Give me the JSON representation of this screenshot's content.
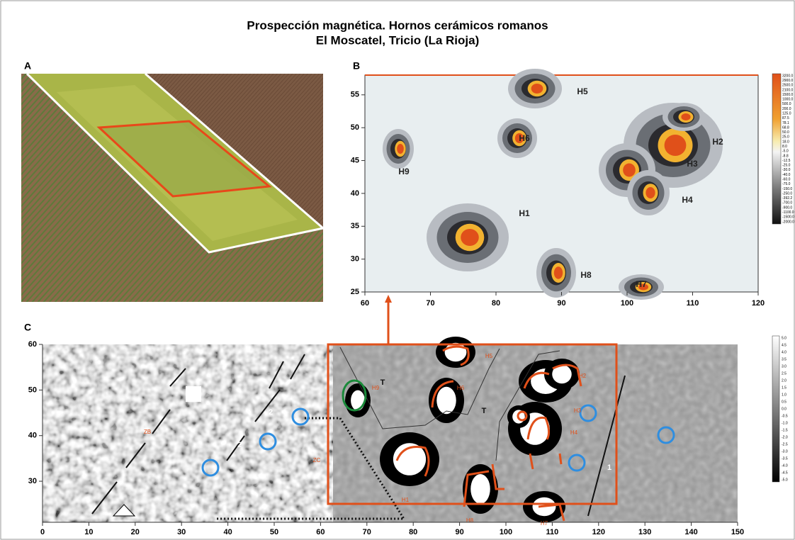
{
  "title": {
    "line1": "Prospección magnética. Hornos cerámicos romanos",
    "line2": "El Moscatel, Tricio (La Rioja)"
  },
  "panel_a": {
    "label": "A"
  },
  "panel_b": {
    "label": "B",
    "xlim": [
      60,
      120
    ],
    "ylim": [
      25,
      58
    ],
    "xticks": [
      60,
      70,
      80,
      90,
      100,
      110,
      120
    ],
    "yticks": [
      25,
      30,
      35,
      40,
      45,
      50,
      55
    ],
    "features": [
      "H5",
      "H6",
      "H2",
      "H9",
      "H3",
      "H4",
      "H1",
      "H8",
      "H7"
    ],
    "colorbar": [
      "3200.0",
      "2900.0",
      "2500.0",
      "2100.0",
      "1500.0",
      "1000.0",
      "500.0",
      "200.0",
      "125.0",
      "87.5",
      "78.1",
      "68.8",
      "50.0",
      "25.0",
      "18.0",
      "8.0",
      "-5.0",
      "-8.8",
      "-12.5",
      "-25.0",
      "-30.0",
      "-40.0",
      "-60.0",
      "-75.0",
      "-150.0",
      "-250.0",
      "-392.2",
      "-700.0",
      "-900.0",
      "-1100.0",
      "-1500.0",
      "-2000.0"
    ]
  },
  "panel_c": {
    "label": "C",
    "xlim": [
      0,
      150
    ],
    "ylim": [
      21,
      60
    ],
    "xticks": [
      0,
      10,
      20,
      30,
      40,
      50,
      60,
      70,
      80,
      90,
      100,
      110,
      120,
      130,
      140,
      150
    ],
    "yticks": [
      30,
      40,
      50,
      60
    ],
    "annotations": [
      "ZB",
      "ZC",
      "2",
      "2",
      "1",
      "T",
      "T",
      "H9",
      "H6",
      "H5",
      "H3",
      "H2",
      "H4",
      "H1",
      "H8",
      "H7"
    ],
    "colorbar": [
      "5.0",
      "4.5",
      "4.0",
      "3.5",
      "3.0",
      "2.5",
      "2.0",
      "1.5",
      "1.0",
      "0.5",
      "0.0",
      "-0.5",
      "-1.0",
      "-1.5",
      "-2.0",
      "-2.5",
      "-3.0",
      "-3.5",
      "-4.0",
      "-4.5",
      "-5.0"
    ]
  }
}
